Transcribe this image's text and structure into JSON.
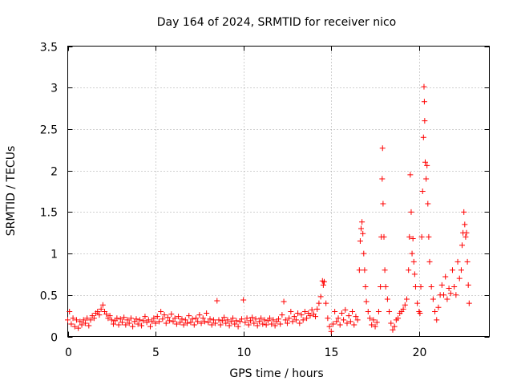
{
  "chart_data": {
    "type": "scatter",
    "title": "Day 164 of 2024, SRMTID for receiver nico",
    "xlabel": "GPS time / hours",
    "ylabel": "SRMTID / TECUs",
    "xlim": [
      0,
      24
    ],
    "ylim": [
      0,
      3.5
    ],
    "xticks": [
      0,
      5,
      10,
      15,
      20
    ],
    "xtick_labels": [
      "0",
      "5",
      "10",
      "15",
      "20"
    ],
    "yticks": [
      0,
      0.5,
      1,
      1.5,
      2,
      2.5,
      3,
      3.5
    ],
    "ytick_labels": [
      "0",
      "0.5",
      "1",
      "1.5",
      "2",
      "2.5",
      "3",
      "3.5"
    ],
    "grid": true,
    "marker": "+",
    "color": "#ff0000",
    "series": [
      {
        "name": "SRMTID",
        "points": [
          [
            0.0,
            0.2
          ],
          [
            0.1,
            0.3
          ],
          [
            0.2,
            0.15
          ],
          [
            0.3,
            0.22
          ],
          [
            0.4,
            0.12
          ],
          [
            0.5,
            0.2
          ],
          [
            0.6,
            0.1
          ],
          [
            0.7,
            0.18
          ],
          [
            0.8,
            0.14
          ],
          [
            0.9,
            0.2
          ],
          [
            1.0,
            0.16
          ],
          [
            1.1,
            0.22
          ],
          [
            1.2,
            0.13
          ],
          [
            1.3,
            0.2
          ],
          [
            1.4,
            0.25
          ],
          [
            1.5,
            0.22
          ],
          [
            1.6,
            0.28
          ],
          [
            1.7,
            0.3
          ],
          [
            1.8,
            0.26
          ],
          [
            1.9,
            0.33
          ],
          [
            2.0,
            0.38
          ],
          [
            2.1,
            0.3
          ],
          [
            2.2,
            0.27
          ],
          [
            2.3,
            0.22
          ],
          [
            2.4,
            0.25
          ],
          [
            2.5,
            0.2
          ],
          [
            2.6,
            0.15
          ],
          [
            2.7,
            0.19
          ],
          [
            2.8,
            0.22
          ],
          [
            2.9,
            0.14
          ],
          [
            3.0,
            0.21
          ],
          [
            3.1,
            0.17
          ],
          [
            3.2,
            0.23
          ],
          [
            3.3,
            0.14
          ],
          [
            3.4,
            0.2
          ],
          [
            3.5,
            0.16
          ],
          [
            3.6,
            0.22
          ],
          [
            3.7,
            0.12
          ],
          [
            3.8,
            0.18
          ],
          [
            3.9,
            0.21
          ],
          [
            4.0,
            0.15
          ],
          [
            4.1,
            0.2
          ],
          [
            4.2,
            0.13
          ],
          [
            4.3,
            0.19
          ],
          [
            4.4,
            0.24
          ],
          [
            4.5,
            0.17
          ],
          [
            4.6,
            0.2
          ],
          [
            4.7,
            0.12
          ],
          [
            4.8,
            0.18
          ],
          [
            4.9,
            0.22
          ],
          [
            5.0,
            0.16
          ],
          [
            5.1,
            0.24
          ],
          [
            5.2,
            0.18
          ],
          [
            5.3,
            0.3
          ],
          [
            5.4,
            0.21
          ],
          [
            5.5,
            0.26
          ],
          [
            5.6,
            0.16
          ],
          [
            5.7,
            0.23
          ],
          [
            5.8,
            0.19
          ],
          [
            5.9,
            0.27
          ],
          [
            6.0,
            0.18
          ],
          [
            6.1,
            0.22
          ],
          [
            6.2,
            0.15
          ],
          [
            6.3,
            0.24
          ],
          [
            6.4,
            0.17
          ],
          [
            6.5,
            0.21
          ],
          [
            6.6,
            0.14
          ],
          [
            6.7,
            0.2
          ],
          [
            6.8,
            0.16
          ],
          [
            6.9,
            0.25
          ],
          [
            7.0,
            0.17
          ],
          [
            7.1,
            0.21
          ],
          [
            7.2,
            0.14
          ],
          [
            7.3,
            0.22
          ],
          [
            7.4,
            0.18
          ],
          [
            7.5,
            0.26
          ],
          [
            7.6,
            0.16
          ],
          [
            7.7,
            0.22
          ],
          [
            7.8,
            0.18
          ],
          [
            7.9,
            0.28
          ],
          [
            8.0,
            0.17
          ],
          [
            8.1,
            0.21
          ],
          [
            8.2,
            0.14
          ],
          [
            8.3,
            0.2
          ],
          [
            8.4,
            0.16
          ],
          [
            8.5,
            0.43
          ],
          [
            8.6,
            0.2
          ],
          [
            8.7,
            0.14
          ],
          [
            8.8,
            0.19
          ],
          [
            8.9,
            0.23
          ],
          [
            9.0,
            0.16
          ],
          [
            9.1,
            0.2
          ],
          [
            9.2,
            0.13
          ],
          [
            9.3,
            0.18
          ],
          [
            9.4,
            0.22
          ],
          [
            9.5,
            0.15
          ],
          [
            9.6,
            0.19
          ],
          [
            9.7,
            0.12
          ],
          [
            9.8,
            0.18
          ],
          [
            9.9,
            0.21
          ],
          [
            10.0,
            0.44
          ],
          [
            10.1,
            0.17
          ],
          [
            10.2,
            0.22
          ],
          [
            10.3,
            0.14
          ],
          [
            10.4,
            0.19
          ],
          [
            10.5,
            0.23
          ],
          [
            10.6,
            0.16
          ],
          [
            10.7,
            0.21
          ],
          [
            10.8,
            0.13
          ],
          [
            10.9,
            0.18
          ],
          [
            11.0,
            0.22
          ],
          [
            11.1,
            0.15
          ],
          [
            11.2,
            0.2
          ],
          [
            11.3,
            0.14
          ],
          [
            11.4,
            0.19
          ],
          [
            11.5,
            0.22
          ],
          [
            11.6,
            0.15
          ],
          [
            11.7,
            0.2
          ],
          [
            11.8,
            0.13
          ],
          [
            11.9,
            0.18
          ],
          [
            12.0,
            0.21
          ],
          [
            12.1,
            0.15
          ],
          [
            12.2,
            0.26
          ],
          [
            12.3,
            0.42
          ],
          [
            12.4,
            0.2
          ],
          [
            12.5,
            0.16
          ],
          [
            12.6,
            0.22
          ],
          [
            12.7,
            0.3
          ],
          [
            12.8,
            0.18
          ],
          [
            12.9,
            0.24
          ],
          [
            13.0,
            0.2
          ],
          [
            13.1,
            0.28
          ],
          [
            13.2,
            0.16
          ],
          [
            13.3,
            0.26
          ],
          [
            13.4,
            0.2
          ],
          [
            13.5,
            0.3
          ],
          [
            13.6,
            0.22
          ],
          [
            13.7,
            0.28
          ],
          [
            13.8,
            0.25
          ],
          [
            13.9,
            0.32
          ],
          [
            14.0,
            0.27
          ],
          [
            14.1,
            0.24
          ],
          [
            14.2,
            0.33
          ],
          [
            14.3,
            0.4
          ],
          [
            14.4,
            0.48
          ],
          [
            14.5,
            0.67
          ],
          [
            14.55,
            0.62
          ],
          [
            14.6,
            0.66
          ],
          [
            14.7,
            0.4
          ],
          [
            14.8,
            0.22
          ],
          [
            14.9,
            0.12
          ],
          [
            15.0,
            0.06
          ],
          [
            15.1,
            0.15
          ],
          [
            15.2,
            0.3
          ],
          [
            15.3,
            0.18
          ],
          [
            15.4,
            0.22
          ],
          [
            15.5,
            0.14
          ],
          [
            15.6,
            0.28
          ],
          [
            15.7,
            0.2
          ],
          [
            15.8,
            0.32
          ],
          [
            15.9,
            0.16
          ],
          [
            16.0,
            0.25
          ],
          [
            16.1,
            0.18
          ],
          [
            16.2,
            0.3
          ],
          [
            16.3,
            0.14
          ],
          [
            16.4,
            0.24
          ],
          [
            16.5,
            0.2
          ],
          [
            16.6,
            0.8
          ],
          [
            16.65,
            1.15
          ],
          [
            16.7,
            1.3
          ],
          [
            16.75,
            1.38
          ],
          [
            16.8,
            1.24
          ],
          [
            16.85,
            1.0
          ],
          [
            16.9,
            0.8
          ],
          [
            16.95,
            0.6
          ],
          [
            17.0,
            0.42
          ],
          [
            17.1,
            0.3
          ],
          [
            17.2,
            0.22
          ],
          [
            17.3,
            0.14
          ],
          [
            17.4,
            0.2
          ],
          [
            17.5,
            0.12
          ],
          [
            17.6,
            0.17
          ],
          [
            17.7,
            0.3
          ],
          [
            17.8,
            0.6
          ],
          [
            17.85,
            1.2
          ],
          [
            17.9,
            1.9
          ],
          [
            17.92,
            2.27
          ],
          [
            17.95,
            1.6
          ],
          [
            18.0,
            1.2
          ],
          [
            18.05,
            0.8
          ],
          [
            18.1,
            0.6
          ],
          [
            18.2,
            0.45
          ],
          [
            18.3,
            0.3
          ],
          [
            18.4,
            0.16
          ],
          [
            18.5,
            0.08
          ],
          [
            18.6,
            0.12
          ],
          [
            18.7,
            0.2
          ],
          [
            18.8,
            0.22
          ],
          [
            18.9,
            0.28
          ],
          [
            19.0,
            0.3
          ],
          [
            19.1,
            0.33
          ],
          [
            19.2,
            0.38
          ],
          [
            19.3,
            0.45
          ],
          [
            19.4,
            0.8
          ],
          [
            19.45,
            1.2
          ],
          [
            19.5,
            1.95
          ],
          [
            19.55,
            1.5
          ],
          [
            19.6,
            1.0
          ],
          [
            19.65,
            1.18
          ],
          [
            19.7,
            0.9
          ],
          [
            19.75,
            0.75
          ],
          [
            19.8,
            0.6
          ],
          [
            19.9,
            0.4
          ],
          [
            20.0,
            0.3
          ],
          [
            20.05,
            0.28
          ],
          [
            20.1,
            0.6
          ],
          [
            20.15,
            1.2
          ],
          [
            20.2,
            1.75
          ],
          [
            20.25,
            2.4
          ],
          [
            20.28,
            3.01
          ],
          [
            20.3,
            2.83
          ],
          [
            20.32,
            2.6
          ],
          [
            20.35,
            2.1
          ],
          [
            20.4,
            1.9
          ],
          [
            20.45,
            2.06
          ],
          [
            20.5,
            1.6
          ],
          [
            20.55,
            1.2
          ],
          [
            20.6,
            0.9
          ],
          [
            20.7,
            0.6
          ],
          [
            20.8,
            0.45
          ],
          [
            20.9,
            0.3
          ],
          [
            21.0,
            0.2
          ],
          [
            21.1,
            0.35
          ],
          [
            21.2,
            0.5
          ],
          [
            21.3,
            0.62
          ],
          [
            21.4,
            0.5
          ],
          [
            21.5,
            0.72
          ],
          [
            21.6,
            0.45
          ],
          [
            21.7,
            0.58
          ],
          [
            21.8,
            0.52
          ],
          [
            21.9,
            0.8
          ],
          [
            22.0,
            0.6
          ],
          [
            22.1,
            0.5
          ],
          [
            22.2,
            0.9
          ],
          [
            22.3,
            0.7
          ],
          [
            22.4,
            0.8
          ],
          [
            22.45,
            1.1
          ],
          [
            22.5,
            1.25
          ],
          [
            22.55,
            1.5
          ],
          [
            22.6,
            1.35
          ],
          [
            22.65,
            1.2
          ],
          [
            22.7,
            1.25
          ],
          [
            22.75,
            0.9
          ],
          [
            22.8,
            0.62
          ],
          [
            22.85,
            0.4
          ]
        ]
      }
    ]
  }
}
